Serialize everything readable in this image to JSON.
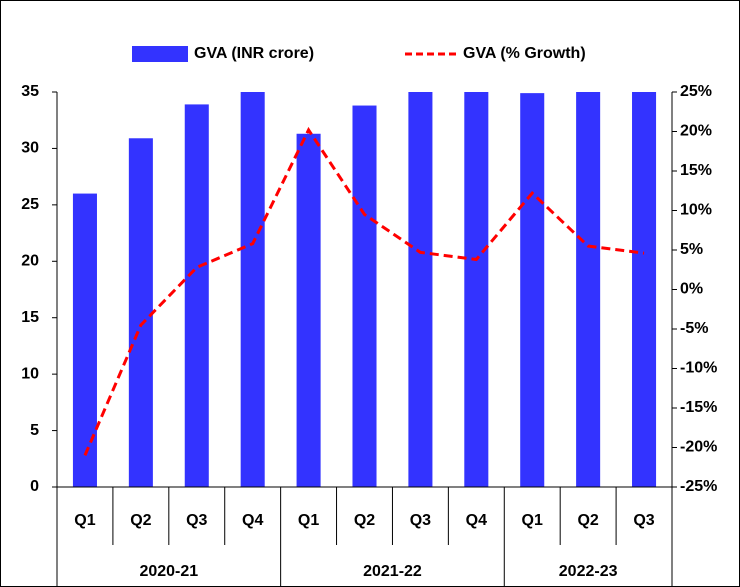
{
  "chart_data": {
    "type": "bar_line",
    "groups": [
      {
        "name": "2020-21",
        "categories": [
          "Q1",
          "Q2",
          "Q3",
          "Q4"
        ]
      },
      {
        "name": "2021-22",
        "categories": [
          "Q1",
          "Q2",
          "Q3",
          "Q4"
        ]
      },
      {
        "name": "2022-23",
        "categories": [
          "Q1",
          "Q2",
          "Q3"
        ]
      }
    ],
    "series": [
      {
        "name": "GVA (INR crore)",
        "type": "bar",
        "color": "#3333ff",
        "values": [
          26,
          30.9,
          33.9,
          35,
          31.3,
          33.8,
          35,
          35,
          34.9,
          35,
          35
        ]
      },
      {
        "name": "GVA (% Growth)",
        "type": "line",
        "axis": "y2",
        "color": "#ff0000",
        "values": [
          -21,
          -4.5,
          2.8,
          5.8,
          20.2,
          9.5,
          4.7,
          3.8,
          12.2,
          5.5,
          4.6
        ]
      }
    ],
    "ylim": [
      0,
      35
    ],
    "yticks": [
      0,
      5,
      10,
      15,
      20,
      25,
      30,
      35
    ],
    "y2lim": [
      -25,
      25
    ],
    "y2ticks": [
      {
        "value": -25,
        "label": "-25%"
      },
      {
        "value": -20,
        "label": "-20%"
      },
      {
        "value": -15,
        "label": "-15%"
      },
      {
        "value": -10,
        "label": "-10%"
      },
      {
        "value": -5,
        "label": "-5%"
      },
      {
        "value": 0,
        "label": "0%"
      },
      {
        "value": 5,
        "label": "5%"
      },
      {
        "value": 10,
        "label": "10%"
      },
      {
        "value": 15,
        "label": "15%"
      },
      {
        "value": 20,
        "label": "20%"
      },
      {
        "value": 25,
        "label": "25%"
      }
    ],
    "legend": "top"
  }
}
